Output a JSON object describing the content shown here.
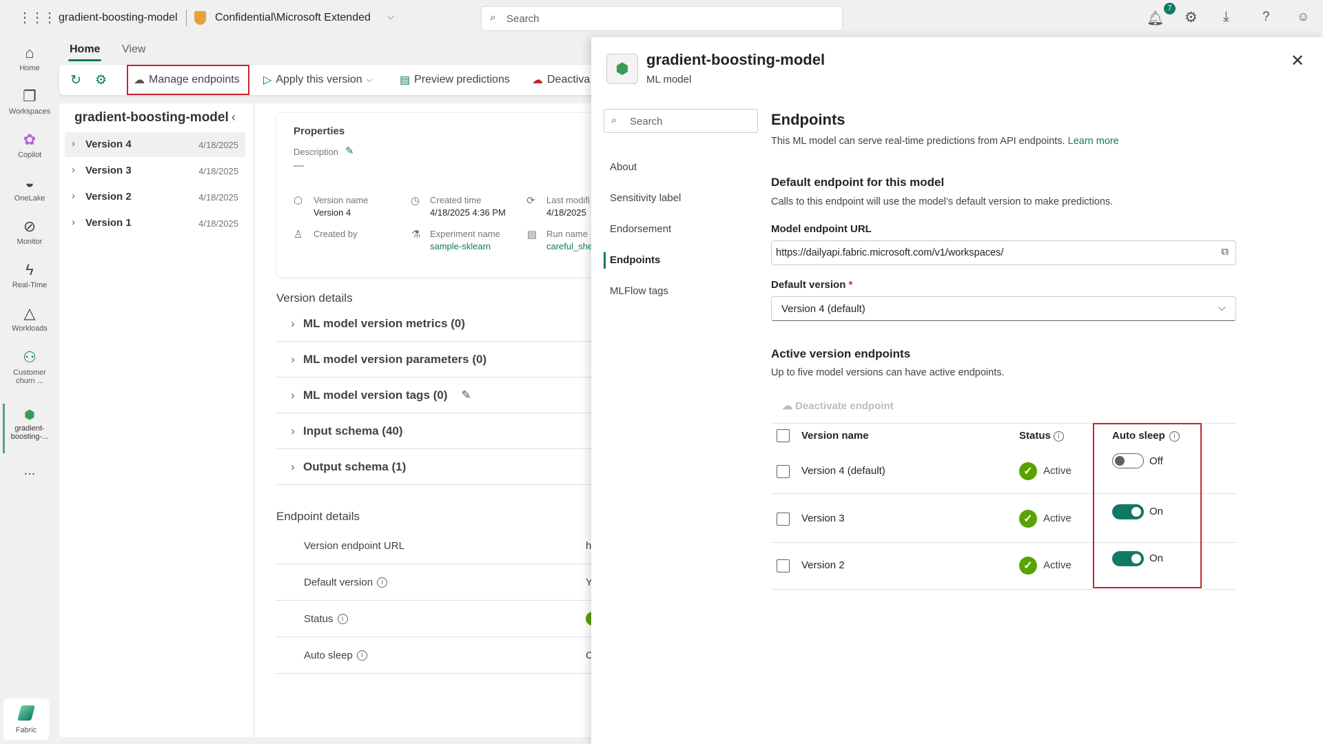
{
  "topbar": {
    "app_title": "gradient-boosting-model",
    "sensitivity": "Confidential\\Microsoft Extended",
    "search_placeholder": "Search",
    "notification_count": "7"
  },
  "rail": [
    {
      "label": "Home",
      "icon": "home-icon"
    },
    {
      "label": "Workspaces",
      "icon": "workspaces-icon"
    },
    {
      "label": "Copilot",
      "icon": "copilot-icon"
    },
    {
      "label": "OneLake",
      "icon": "onelake-icon"
    },
    {
      "label": "Monitor",
      "icon": "monitor-icon"
    },
    {
      "label": "Real-Time",
      "icon": "realtime-icon"
    },
    {
      "label": "Workloads",
      "icon": "workloads-icon"
    },
    {
      "label": "Customer churn ...",
      "icon": "workspace-icon"
    },
    {
      "label": "gradient-boosting-...",
      "icon": "ml-model-icon"
    }
  ],
  "rail_more": "...",
  "rail_fabric": "Fabric",
  "tabs": [
    "Home",
    "View"
  ],
  "toolbar": {
    "manage": "Manage endpoints",
    "apply": "Apply this version",
    "preview": "Preview predictions",
    "deactivate": "Deactiva"
  },
  "tree": {
    "title": "gradient-boosting-model",
    "versions": [
      {
        "name": "Version 4",
        "date": "4/18/2025"
      },
      {
        "name": "Version 3",
        "date": "4/18/2025"
      },
      {
        "name": "Version 2",
        "date": "4/18/2025"
      },
      {
        "name": "Version 1",
        "date": "4/18/2025"
      }
    ]
  },
  "properties": {
    "title": "Properties",
    "description_label": "Description",
    "description_value": "—",
    "version_name_label": "Version name",
    "version_name": "Version 4",
    "created_time_label": "Created time",
    "created_time": "4/18/2025 4:36 PM",
    "last_modified_label": "Last modifi",
    "last_modified": "4/18/2025",
    "created_by_label": "Created by",
    "experiment_label": "Experiment name",
    "experiment": "sample-sklearn",
    "run_label": "Run name",
    "run": "careful_she"
  },
  "version_details": {
    "title": "Version details",
    "items": [
      "ML model version metrics (0)",
      "ML model version parameters (0)",
      "ML model version tags (0)",
      "Input schema (40)",
      "Output schema (1)"
    ]
  },
  "endpoint_details": {
    "title": "Endpoint details",
    "rows": [
      {
        "label": "Version endpoint URL",
        "value": "h"
      },
      {
        "label": "Default version",
        "value": "Y"
      },
      {
        "label": "Status",
        "value": ""
      },
      {
        "label": "Auto sleep",
        "value": "C"
      }
    ]
  },
  "panel": {
    "title": "gradient-boosting-model",
    "subtitle": "ML model",
    "search_placeholder": "Search",
    "nav": [
      "About",
      "Sensitivity label",
      "Endorsement",
      "Endpoints",
      "MLFlow tags"
    ],
    "heading": "Endpoints",
    "description": "This ML model can serve real-time predictions from API endpoints.",
    "learn_more": "Learn more",
    "default_heading": "Default endpoint for this model",
    "default_sub": "Calls to this endpoint will use the model’s default version to make predictions.",
    "url_label": "Model endpoint URL",
    "url_value": "https://dailyapi.fabric.microsoft.com/v1/workspaces/",
    "version_label": "Default version",
    "required": "*",
    "version_value": "Version 4 (default)",
    "active_heading": "Active version endpoints",
    "active_sub": "Up to five model versions can have active endpoints.",
    "deactivate": "Deactivate endpoint",
    "columns": {
      "name": "Version name",
      "status": "Status",
      "auto_sleep": "Auto sleep"
    },
    "rows": [
      {
        "name": "Version 4 (default)",
        "status": "Active",
        "auto_sleep": "Off",
        "on": false
      },
      {
        "name": "Version 3",
        "status": "Active",
        "auto_sleep": "On",
        "on": true
      },
      {
        "name": "Version 2",
        "status": "Active",
        "auto_sleep": "On",
        "on": true
      }
    ]
  },
  "colors": {
    "accent": "#117865",
    "active": "#57a300",
    "highlight": "#c4262e"
  }
}
